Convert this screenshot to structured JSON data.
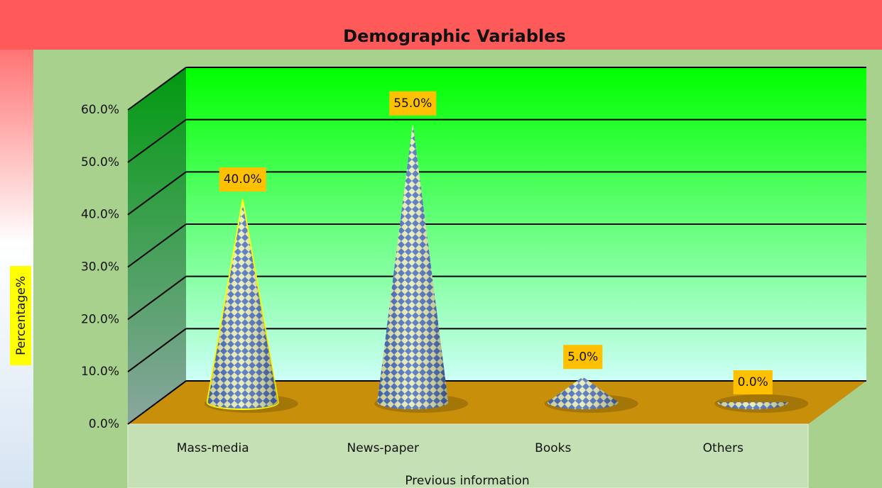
{
  "chart_data": {
    "type": "cone",
    "title": "Demographic Variables",
    "x_label": "Previous information",
    "y_label": "Percentage%",
    "categories": [
      "Mass-media",
      "News-paper",
      "Books",
      "Others"
    ],
    "values": [
      40,
      55,
      5,
      0
    ],
    "value_labels": [
      "40.0%",
      "55.0%",
      "5.0%",
      "0.0%"
    ],
    "ylim": [
      0,
      60
    ],
    "yticks": [
      {
        "value": 0,
        "label": "0.0%"
      },
      {
        "value": 10,
        "label": "10.0%"
      },
      {
        "value": 20,
        "label": "20.0%"
      },
      {
        "value": 30,
        "label": "30.0%"
      },
      {
        "value": 40,
        "label": "40.0%"
      },
      {
        "value": 50,
        "label": "50.0%"
      },
      {
        "value": 60,
        "label": "60.0%"
      }
    ],
    "grid": true,
    "color": "#4472c4"
  }
}
